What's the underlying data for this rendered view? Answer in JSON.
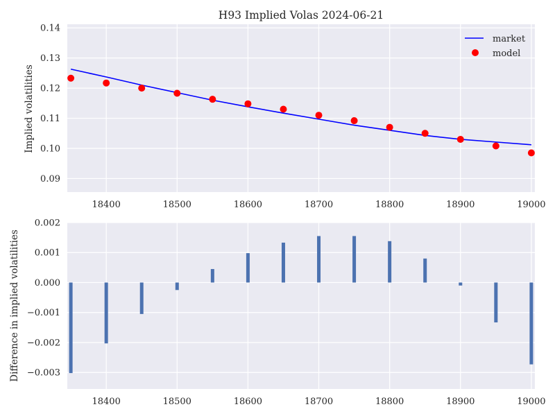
{
  "chart_data": [
    {
      "type": "line",
      "title": "H93 Implied Volas 2024-06-21",
      "xlabel": "",
      "ylabel": "Implied volatilities",
      "xlim": [
        18345,
        19005
      ],
      "ylim": [
        0.0855,
        0.1412
      ],
      "grid": true,
      "legend_position": "top-right",
      "x": [
        18350,
        18400,
        18450,
        18500,
        18550,
        18600,
        18650,
        18700,
        18750,
        18800,
        18850,
        18900,
        18950,
        19000
      ],
      "series": [
        {
          "name": "market",
          "style": "line",
          "color": "#0000ff",
          "values": [
            0.1263,
            0.1237,
            0.121,
            0.1185,
            0.116,
            0.1138,
            0.1117,
            0.1097,
            0.1077,
            0.106,
            0.1043,
            0.103,
            0.1021,
            0.1012
          ]
        },
        {
          "name": "model",
          "style": "points",
          "color": "#ff0000",
          "values": [
            0.1233,
            0.1217,
            0.12,
            0.1183,
            0.1163,
            0.1148,
            0.113,
            0.111,
            0.1092,
            0.107,
            0.105,
            0.103,
            0.1008,
            0.0985
          ]
        }
      ],
      "xticks": [
        "18400",
        "18500",
        "18600",
        "18700",
        "18800",
        "18900",
        "19000"
      ],
      "yticks": [
        "0.09",
        "0.10",
        "0.11",
        "0.12",
        "0.13",
        "0.14"
      ]
    },
    {
      "type": "bar",
      "title": "",
      "xlabel": "",
      "ylabel": "Difference in implied volatilities",
      "xlim": [
        18345,
        19005
      ],
      "ylim": [
        -0.00355,
        0.002
      ],
      "grid": true,
      "x": [
        18350,
        18400,
        18450,
        18500,
        18550,
        18600,
        18650,
        18700,
        18750,
        18800,
        18850,
        18900,
        18950,
        19000
      ],
      "values": [
        -0.00302,
        -0.00203,
        -0.00105,
        -0.00025,
        0.00045,
        0.00098,
        0.00133,
        0.00155,
        0.00155,
        0.00138,
        0.0008,
        -0.0001,
        -0.00133,
        -0.00273
      ],
      "color": "#4c72b0",
      "xticks": [
        "18400",
        "18500",
        "18600",
        "18700",
        "18800",
        "18900",
        "19000"
      ],
      "yticks": [
        "0.002",
        "0.001",
        "0.000",
        "−0.001",
        "−0.002",
        "−0.003"
      ]
    }
  ],
  "colors": {
    "axes_background": "#eaeaf2",
    "grid": "#ffffff",
    "text": "#262626"
  }
}
